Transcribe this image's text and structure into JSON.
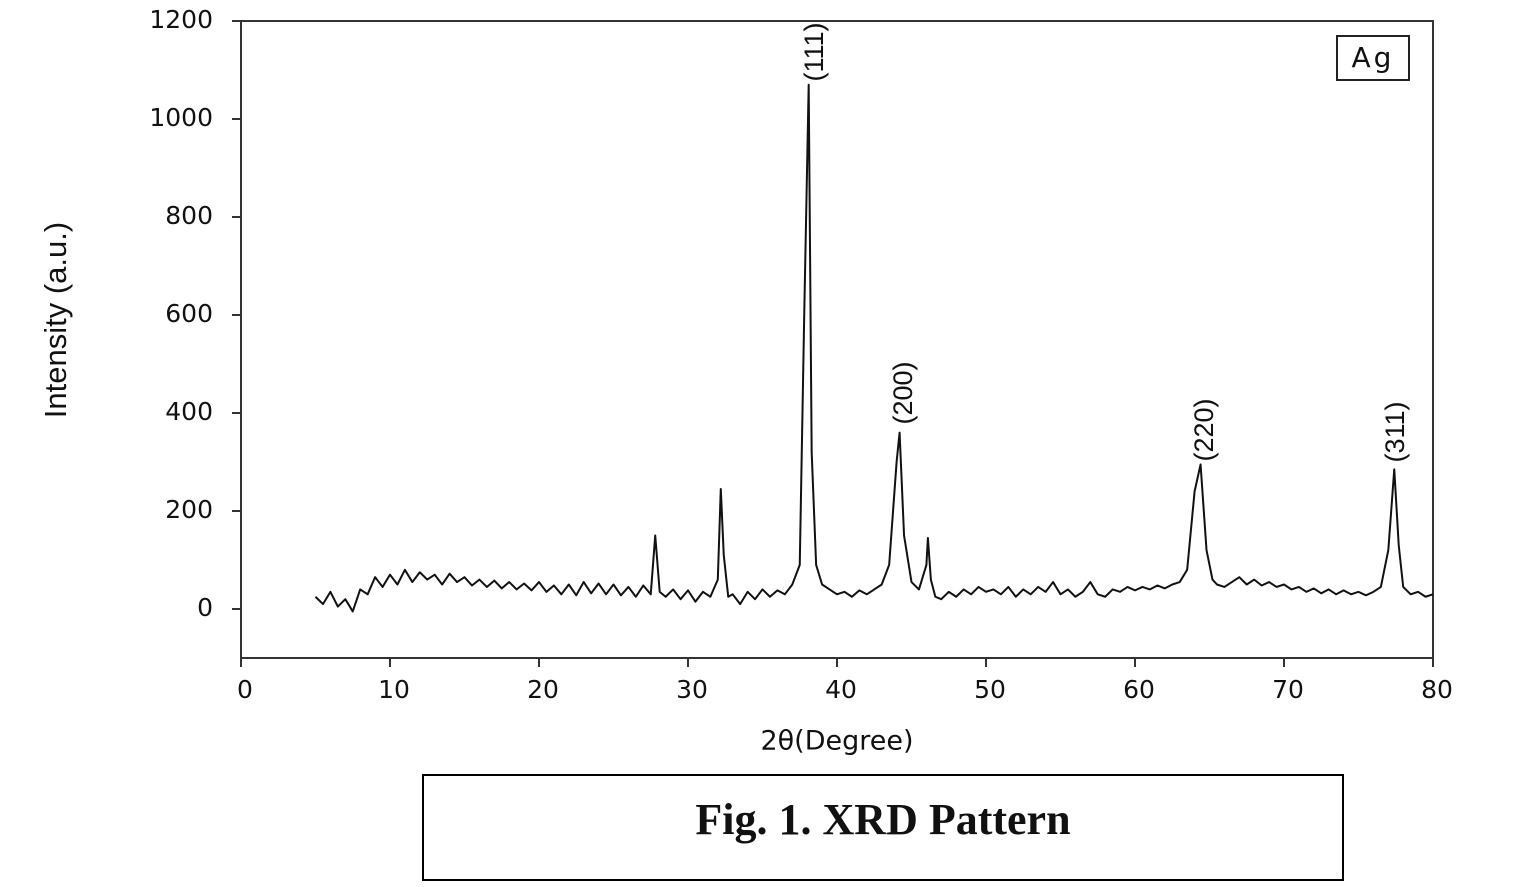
{
  "chart_data": {
    "type": "line",
    "x_label": "2θ(Degree)",
    "y_label": "Intensity (a.u.)",
    "xlim": [
      0,
      80
    ],
    "xticks": [
      0,
      10,
      20,
      30,
      40,
      50,
      60,
      70,
      80
    ],
    "ylim": [
      -100,
      1200
    ],
    "yticks": [
      0,
      200,
      400,
      600,
      800,
      1000,
      1200
    ],
    "grid": false,
    "legend": "upper right",
    "annotations": [
      "(111)",
      "(200)",
      "(220)",
      "(311)"
    ],
    "x": [
      5,
      5.5,
      6,
      6.5,
      7,
      7.5,
      8,
      8.5,
      9,
      9.5,
      10,
      10.5,
      11,
      11.5,
      12,
      12.5,
      13,
      13.5,
      14,
      14.5,
      15,
      15.5,
      16,
      16.5,
      17,
      17.5,
      18,
      18.5,
      19,
      19.5,
      20,
      20.5,
      21,
      21.5,
      22,
      22.5,
      23,
      23.5,
      24,
      24.5,
      25,
      25.5,
      26,
      26.5,
      27,
      27.5,
      27.8,
      28.1,
      28.5,
      29,
      29.5,
      30,
      30.5,
      31,
      31.5,
      32,
      32.2,
      32.4,
      32.7,
      33,
      33.5,
      34,
      34.5,
      35,
      35.5,
      36,
      36.5,
      37,
      37.5,
      37.8,
      38.1,
      38.3,
      38.6,
      39,
      39.5,
      40,
      40.5,
      41,
      41.5,
      42,
      42.5,
      43,
      43.5,
      44,
      44.2,
      44.5,
      45,
      45.5,
      46,
      46.1,
      46.3,
      46.6,
      47,
      47.5,
      48,
      48.5,
      49,
      49.5,
      50,
      50.5,
      51,
      51.5,
      52,
      52.5,
      53,
      53.5,
      54,
      54.5,
      55,
      55.5,
      56,
      56.5,
      57,
      57.5,
      58,
      58.5,
      59,
      59.5,
      60,
      60.5,
      61,
      61.5,
      62,
      62.5,
      63,
      63.5,
      64,
      64.4,
      64.8,
      65.2,
      65.5,
      66,
      66.5,
      67,
      67.5,
      68,
      68.5,
      69,
      69.5,
      70,
      70.5,
      71,
      71.5,
      72,
      72.5,
      73,
      73.5,
      74,
      74.5,
      75,
      75.5,
      76,
      76.5,
      77,
      77.4,
      77.7,
      78,
      78.5,
      79,
      79.5,
      80
    ],
    "series": [
      {
        "name": "Ag",
        "color": "#111111",
        "values": [
          25,
          10,
          35,
          5,
          20,
          -5,
          40,
          30,
          65,
          45,
          70,
          50,
          80,
          55,
          75,
          60,
          70,
          50,
          72,
          55,
          65,
          48,
          60,
          45,
          58,
          42,
          55,
          40,
          52,
          38,
          55,
          35,
          48,
          30,
          50,
          28,
          55,
          32,
          52,
          30,
          50,
          28,
          45,
          25,
          48,
          30,
          150,
          35,
          25,
          40,
          20,
          38,
          15,
          35,
          25,
          60,
          245,
          110,
          25,
          30,
          10,
          35,
          20,
          40,
          25,
          38,
          30,
          50,
          90,
          600,
          1070,
          320,
          90,
          50,
          40,
          30,
          35,
          25,
          38,
          30,
          40,
          50,
          90,
          300,
          360,
          150,
          55,
          40,
          90,
          145,
          60,
          25,
          20,
          35,
          25,
          40,
          30,
          45,
          35,
          40,
          30,
          45,
          25,
          40,
          30,
          45,
          35,
          55,
          30,
          40,
          25,
          35,
          55,
          30,
          25,
          40,
          35,
          45,
          38,
          45,
          40,
          48,
          42,
          50,
          55,
          80,
          240,
          295,
          120,
          60,
          50,
          45,
          55,
          65,
          50,
          60,
          48,
          55,
          45,
          50,
          40,
          45,
          35,
          42,
          32,
          40,
          30,
          38,
          30,
          35,
          28,
          35,
          45,
          120,
          285,
          130,
          45,
          30,
          35,
          25,
          30
        ]
      }
    ]
  },
  "caption": "Fig. 1. XRD Pattern"
}
